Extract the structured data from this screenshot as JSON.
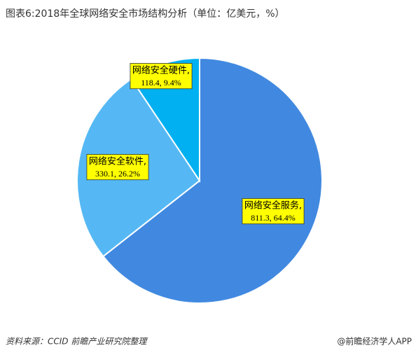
{
  "chart_data": {
    "type": "pie",
    "title": "图表6:2018年全球网络安全市场结构分析（单位：亿美元，%）",
    "categories": [
      "网络安全服务,",
      "网络安全软件,",
      "网络安全硬件,"
    ],
    "values": [
      811.3,
      330.1,
      118.4
    ],
    "percents": [
      64.4,
      26.2,
      9.4
    ],
    "value_labels": [
      "811.3, 64.4%",
      "330.1, 26.2%",
      "118.4, 9.4%"
    ],
    "colors": [
      "#4189e0",
      "#55b8f4",
      "#00b0f0"
    ],
    "source": "资料来源：CCID  前瞻产业研究院整理",
    "credit": "@前瞻经济学人APP"
  }
}
